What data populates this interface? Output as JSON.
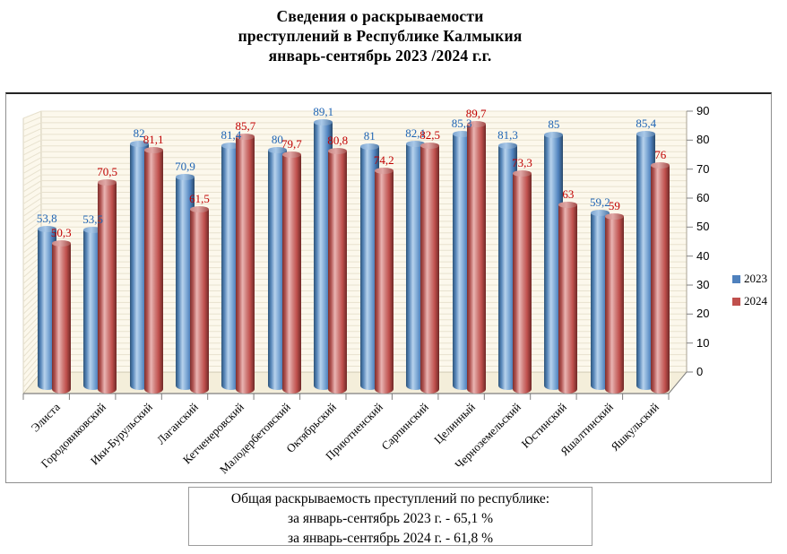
{
  "title": {
    "lines": [
      "Сведения о раскрываемости",
      "преступлений в  Республике Калмыкия",
      "январь-сентябрь 2023 /2024 г.г."
    ]
  },
  "chart_data": {
    "type": "bar",
    "style": "3d-cylinder",
    "categories": [
      "Элиста",
      "Городовиковский",
      "Ики-Бурульский",
      "Лаганский",
      "Кетченеровский",
      "Малодербетовский",
      "Октябрьский",
      "Приютненский",
      "Сарпинский",
      "Целинный",
      "Черноземельский",
      "Юстинский",
      "Яшалтинский",
      "Яшкульский"
    ],
    "series": [
      {
        "name": "2023",
        "color": "#4f81bd",
        "label_color": "#1e64b4",
        "values": [
          53.8,
          53.5,
          82,
          70.9,
          81.4,
          80,
          89.1,
          81,
          82.1,
          85.3,
          81.3,
          85,
          59.2,
          85.4
        ]
      },
      {
        "name": "2024",
        "color": "#c0504d",
        "label_color": "#c00000",
        "values": [
          50.3,
          70.5,
          81.1,
          61.5,
          85.7,
          79.7,
          80.8,
          74.2,
          82.5,
          89.7,
          73.3,
          63,
          59,
          76
        ]
      }
    ],
    "ylim": [
      0,
      90
    ],
    "yticks": [
      0,
      10,
      20,
      30,
      40,
      50,
      60,
      70,
      80,
      90
    ],
    "grid": true,
    "legend_position": "right",
    "wall_color": "#fcf8ec",
    "gridline_color": "#e8e2cf",
    "decimal_separator": ","
  },
  "footer_box": {
    "lines": [
      "Общая раскрываемость преступлений  по республике:",
      "за январь-сентябрь 2023 г. - 65,1 %",
      "за январь-сентябрь 2024 г. - 61,8 %"
    ]
  }
}
